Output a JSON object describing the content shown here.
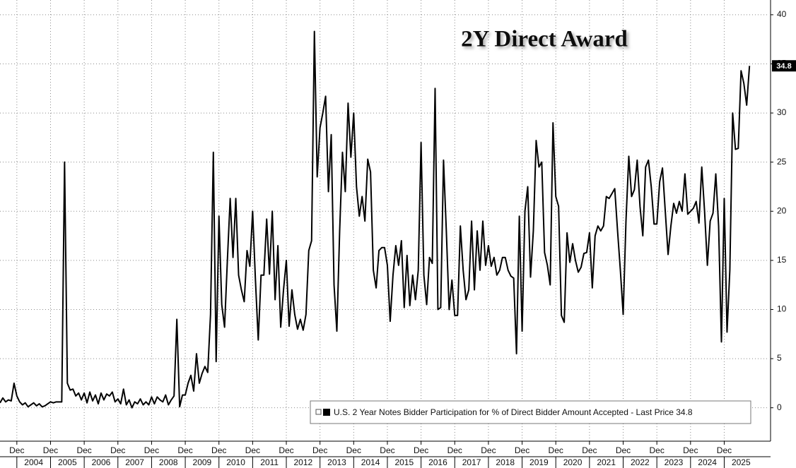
{
  "chart_data": {
    "type": "line",
    "title": "2Y Direct Award",
    "series": [
      {
        "name": "U.S. 2 Year Notes Bidder Participation for % of Direct Bidder Amount Accepted - Last Price 34.8",
        "color": "#000000",
        "x": [
          "2003-06",
          "2003-07",
          "2003-08",
          "2003-09",
          "2003-10",
          "2003-11",
          "2003-12",
          "2004-01",
          "2004-02",
          "2004-03",
          "2004-04",
          "2004-05",
          "2004-06",
          "2004-07",
          "2004-08",
          "2004-09",
          "2004-10",
          "2004-11",
          "2004-12",
          "2005-01",
          "2005-02",
          "2005-03",
          "2005-04",
          "2005-05",
          "2005-06",
          "2005-07",
          "2005-08",
          "2005-09",
          "2005-10",
          "2005-11",
          "2005-12",
          "2006-01",
          "2006-02",
          "2006-03",
          "2006-04",
          "2006-05",
          "2006-06",
          "2006-07",
          "2006-08",
          "2006-09",
          "2006-10",
          "2006-11",
          "2006-12",
          "2007-01",
          "2007-02",
          "2007-03",
          "2007-04",
          "2007-05",
          "2007-06",
          "2007-07",
          "2007-08",
          "2007-09",
          "2007-10",
          "2007-11",
          "2007-12",
          "2008-01",
          "2008-02",
          "2008-03",
          "2008-04",
          "2008-05",
          "2008-06",
          "2008-07",
          "2008-08",
          "2008-09",
          "2008-10",
          "2008-11",
          "2008-12",
          "2009-01",
          "2009-02",
          "2009-03",
          "2009-04",
          "2009-05",
          "2009-06",
          "2009-07",
          "2009-08",
          "2009-09",
          "2009-10",
          "2009-11",
          "2009-12",
          "2010-01",
          "2010-02",
          "2010-03",
          "2010-04",
          "2010-05",
          "2010-06",
          "2010-07",
          "2010-08",
          "2010-09",
          "2010-10",
          "2010-11",
          "2010-12",
          "2011-01",
          "2011-02",
          "2011-03",
          "2011-04",
          "2011-05",
          "2011-06",
          "2011-07",
          "2011-08",
          "2011-09",
          "2011-10",
          "2011-11",
          "2011-12",
          "2012-01",
          "2012-02",
          "2012-03",
          "2012-04",
          "2012-05",
          "2012-06",
          "2012-07",
          "2012-08",
          "2012-09",
          "2012-10",
          "2012-11",
          "2012-12",
          "2013-01",
          "2013-02",
          "2013-03",
          "2013-04",
          "2013-05",
          "2013-06",
          "2013-07",
          "2013-08",
          "2013-09",
          "2013-10",
          "2013-11",
          "2013-12",
          "2014-01",
          "2014-02",
          "2014-03",
          "2014-04",
          "2014-05",
          "2014-06",
          "2014-07",
          "2014-08",
          "2014-09",
          "2014-10",
          "2014-11",
          "2014-12",
          "2015-01",
          "2015-02",
          "2015-03",
          "2015-04",
          "2015-05",
          "2015-06",
          "2015-07",
          "2015-08",
          "2015-09",
          "2015-10",
          "2015-11",
          "2015-12",
          "2016-01",
          "2016-02",
          "2016-03",
          "2016-04",
          "2016-05",
          "2016-06",
          "2016-07",
          "2016-08",
          "2016-09",
          "2016-10",
          "2016-11",
          "2016-12",
          "2017-01",
          "2017-02",
          "2017-03",
          "2017-04",
          "2017-05",
          "2017-06",
          "2017-07",
          "2017-08",
          "2017-09",
          "2017-10",
          "2017-11",
          "2017-12",
          "2018-01",
          "2018-02",
          "2018-03",
          "2018-04",
          "2018-05",
          "2018-06",
          "2018-07",
          "2018-08",
          "2018-09",
          "2018-10",
          "2018-11",
          "2018-12",
          "2019-01",
          "2019-02",
          "2019-03",
          "2019-04",
          "2019-05",
          "2019-06",
          "2019-07",
          "2019-08",
          "2019-09",
          "2019-10",
          "2019-11",
          "2019-12",
          "2020-01",
          "2020-02",
          "2020-03",
          "2020-04",
          "2020-05",
          "2020-06",
          "2020-07",
          "2020-08",
          "2020-09",
          "2020-10",
          "2020-11",
          "2020-12",
          "2021-01",
          "2021-02",
          "2021-03",
          "2021-04",
          "2021-05",
          "2021-06",
          "2021-07",
          "2021-08",
          "2021-09",
          "2021-10",
          "2021-11",
          "2021-12",
          "2022-01",
          "2022-02",
          "2022-03",
          "2022-04",
          "2022-05",
          "2022-06",
          "2022-07",
          "2022-08",
          "2022-09",
          "2022-10",
          "2022-11",
          "2022-12",
          "2023-01",
          "2023-02",
          "2023-03",
          "2023-04",
          "2023-05",
          "2023-06",
          "2023-07",
          "2023-08",
          "2023-09",
          "2023-10",
          "2023-11",
          "2023-12",
          "2024-01",
          "2024-02",
          "2024-03",
          "2024-04",
          "2024-05",
          "2024-06",
          "2024-07",
          "2024-08",
          "2024-09",
          "2024-10",
          "2024-11",
          "2024-12",
          "2025-01",
          "2025-02",
          "2025-03",
          "2025-04",
          "2025-05",
          "2025-06",
          "2025-07",
          "2025-08",
          "2025-09"
        ],
        "values": [
          0.5,
          1.0,
          0.6,
          0.8,
          0.7,
          2.5,
          1.2,
          0.6,
          0.3,
          0.5,
          0.1,
          0.3,
          0.5,
          0.2,
          0.4,
          0.1,
          0.2,
          0.4,
          0.6,
          0.5,
          0.6,
          0.6,
          0.6,
          25,
          2.5,
          1.8,
          1.9,
          1.2,
          1.5,
          0.8,
          1.5,
          0.5,
          1.6,
          0.7,
          1.3,
          0.4,
          1.5,
          0.8,
          1.4,
          1.2,
          1.6,
          0.6,
          0.9,
          0.4,
          1.9,
          0.3,
          0.8,
          0.0,
          0.6,
          0.4,
          0.9,
          0.3,
          0.6,
          0.3,
          1.1,
          0.4,
          1.1,
          0.8,
          0.6,
          1.3,
          0.3,
          0.8,
          1.2,
          9.0,
          0.1,
          1.3,
          1.3,
          2.5,
          3.3,
          1.7,
          5.5,
          2.5,
          3.5,
          4.2,
          3.6,
          9.5,
          26,
          4.7,
          19.5,
          10.5,
          8.2,
          15,
          21.3,
          15.3,
          21.3,
          13.5,
          12,
          10.8,
          16,
          14.4,
          20,
          13,
          6.9,
          13.5,
          13.5,
          19.2,
          13.6,
          20,
          11,
          16.5,
          8.2,
          12,
          15,
          8.3,
          12,
          9.5,
          8,
          9,
          7.9,
          9.5,
          16,
          17,
          38.3,
          23.5,
          28.5,
          30,
          31.7,
          22,
          27.8,
          12.5,
          7.8,
          18,
          26,
          22,
          31,
          25.5,
          30,
          22.5,
          19.5,
          21.5,
          19,
          25.3,
          24,
          14,
          12.2,
          16,
          16.3,
          16.3,
          14.5,
          8.8,
          13.5,
          16.5,
          14.5,
          17,
          10.2,
          15.5,
          10.4,
          13.5,
          11,
          14,
          27,
          13.5,
          10.5,
          15.3,
          14.7,
          32.5,
          10,
          10.2,
          25.2,
          18,
          10,
          13,
          9.4,
          9.4,
          18.5,
          14,
          11,
          12,
          19,
          12,
          18,
          14,
          19,
          14.5,
          16.5,
          14.4,
          15.3,
          13.5,
          14,
          15.3,
          15.3,
          14,
          13.4,
          13.2,
          5.5,
          19.5,
          7.8,
          20,
          22.5,
          13.3,
          18,
          27.2,
          24.5,
          25,
          15.8,
          14.5,
          12.5,
          29,
          21.5,
          20.5,
          9.4,
          8.7,
          17.8,
          14.8,
          16.7,
          15,
          13.8,
          14.3,
          15.7,
          15.8,
          17.8,
          12.2,
          17.5,
          18.5,
          18,
          18.5,
          21.5,
          21.3,
          21.8,
          22.3,
          18,
          14,
          9.5,
          19,
          25.6,
          21.5,
          22.2,
          25.2,
          20.5,
          17.5,
          24.5,
          25.2,
          22.5,
          18.7,
          18.7,
          23,
          24.4,
          20,
          15.6,
          18.5,
          20.8,
          19.8,
          21,
          20,
          23.8,
          19.7,
          20,
          20.3,
          21,
          18.8,
          24.5,
          20,
          14.5,
          19,
          19.8,
          23.8,
          18.5,
          6.7,
          21.3,
          7.7,
          14,
          30,
          26.3,
          26.4,
          34.3,
          33,
          30.8,
          34.8
        ]
      }
    ],
    "xlim": [
      "2003-06",
      "2026-04"
    ],
    "xticks": [
      {
        "value": "2003-12",
        "label": "Dec"
      },
      {
        "value": "2004-12",
        "label": "Dec"
      },
      {
        "value": "2005-12",
        "label": "Dec"
      },
      {
        "value": "2006-12",
        "label": "Dec"
      },
      {
        "value": "2007-12",
        "label": "Dec"
      },
      {
        "value": "2008-12",
        "label": "Dec"
      },
      {
        "value": "2009-12",
        "label": "Dec"
      },
      {
        "value": "2010-12",
        "label": "Dec"
      },
      {
        "value": "2011-12",
        "label": "Dec"
      },
      {
        "value": "2012-12",
        "label": "Dec"
      },
      {
        "value": "2013-12",
        "label": "Dec"
      },
      {
        "value": "2014-12",
        "label": "Dec"
      },
      {
        "value": "2015-12",
        "label": "Dec"
      },
      {
        "value": "2016-12",
        "label": "Dec"
      },
      {
        "value": "2017-12",
        "label": "Dec"
      },
      {
        "value": "2018-12",
        "label": "Dec"
      },
      {
        "value": "2019-12",
        "label": "Dec"
      },
      {
        "value": "2020-12",
        "label": "Dec"
      },
      {
        "value": "2021-12",
        "label": "Dec"
      },
      {
        "value": "2022-12",
        "label": "Dec"
      },
      {
        "value": "2023-12",
        "label": "Dec"
      },
      {
        "value": "2024-12",
        "label": "Dec"
      }
    ],
    "xticks_year": [
      {
        "value": "2004-06",
        "label": "2004"
      },
      {
        "value": "2005-06",
        "label": "2005"
      },
      {
        "value": "2006-06",
        "label": "2006"
      },
      {
        "value": "2007-06",
        "label": "2007"
      },
      {
        "value": "2008-06",
        "label": "2008"
      },
      {
        "value": "2009-06",
        "label": "2009"
      },
      {
        "value": "2010-06",
        "label": "2010"
      },
      {
        "value": "2011-06",
        "label": "2011"
      },
      {
        "value": "2012-06",
        "label": "2012"
      },
      {
        "value": "2013-06",
        "label": "2013"
      },
      {
        "value": "2014-06",
        "label": "2014"
      },
      {
        "value": "2015-06",
        "label": "2015"
      },
      {
        "value": "2016-06",
        "label": "2016"
      },
      {
        "value": "2017-06",
        "label": "2017"
      },
      {
        "value": "2018-06",
        "label": "2018"
      },
      {
        "value": "2019-06",
        "label": "2019"
      },
      {
        "value": "2020-06",
        "label": "2020"
      },
      {
        "value": "2021-06",
        "label": "2021"
      },
      {
        "value": "2022-06",
        "label": "2022"
      },
      {
        "value": "2023-06",
        "label": "2023"
      },
      {
        "value": "2024-06",
        "label": "2024"
      },
      {
        "value": "2025-06",
        "label": "2025"
      }
    ],
    "ylim": [
      -3.4,
      41.5
    ],
    "yticks": [
      0,
      5,
      10,
      15,
      20,
      25,
      30,
      35,
      40
    ],
    "grid": true
  }
}
